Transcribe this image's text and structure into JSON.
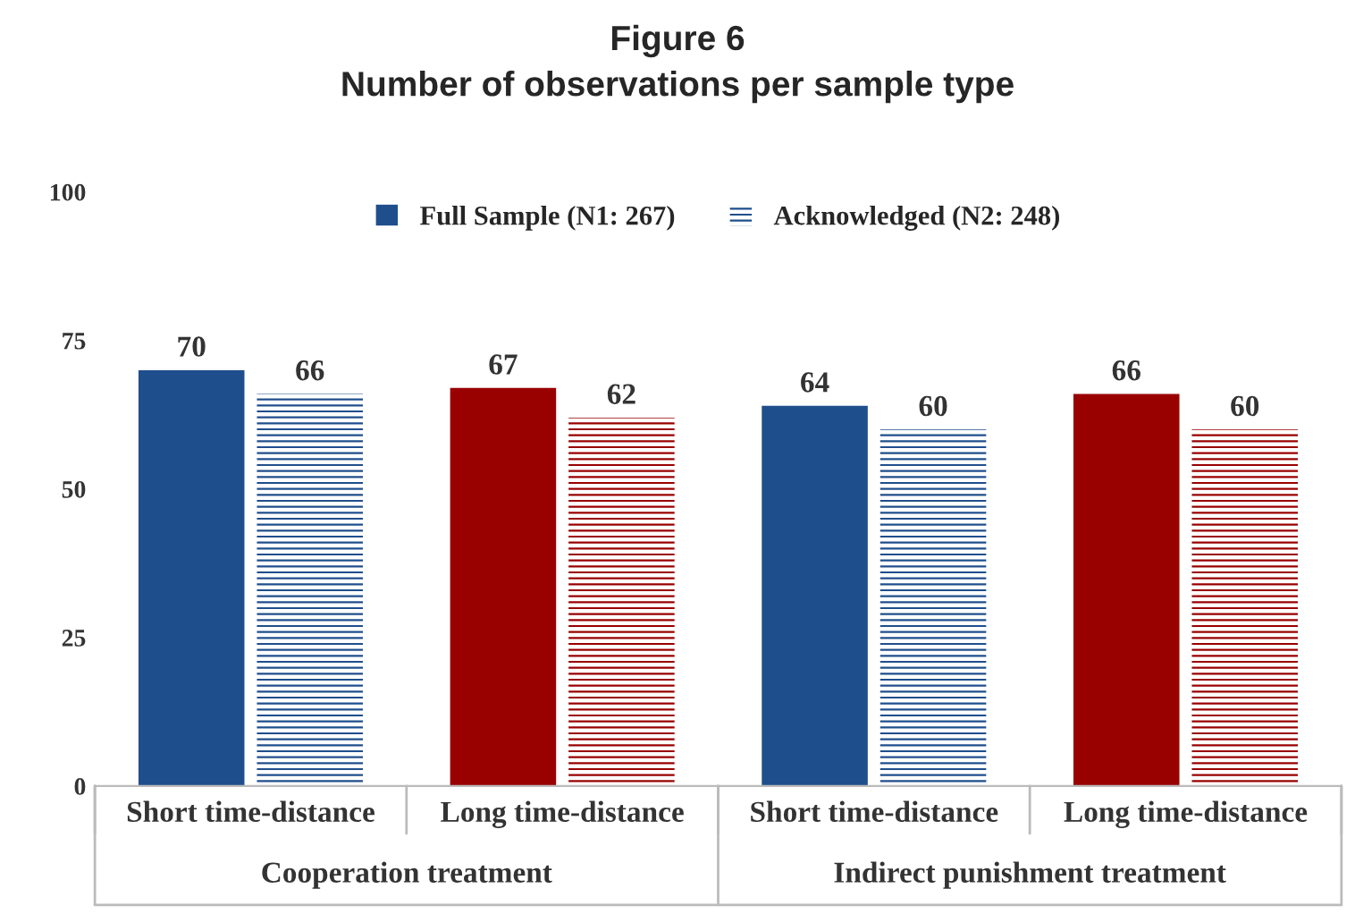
{
  "chart_data": {
    "type": "bar",
    "title": "Figure 6",
    "subtitle": "Number of observations per sample type",
    "categories": [
      "Short time-distance",
      "Long time-distance",
      "Short time-distance",
      "Long time-distance"
    ],
    "series": [
      {
        "name": "Full Sample (N1: 267)",
        "color": "#1f4e8c",
        "colors": [
          "#1f4e8c",
          "#990000",
          "#1f4e8c",
          "#990000"
        ],
        "values": [
          70,
          67,
          64,
          66
        ]
      },
      {
        "name": "Acknowledged (N2: 248)",
        "color": "#1f4e8c",
        "colors": [
          "#1f4e8c",
          "#990000",
          "#1f4e8c",
          "#990000"
        ],
        "values": [
          66,
          62,
          60,
          60
        ]
      }
    ],
    "annotations": [
      "Cooperation treatment",
      "Indirect punishment treatment"
    ],
    "ylim": [
      0,
      100
    ],
    "yticks": [
      0,
      25,
      50,
      75,
      100
    ],
    "grid": false,
    "legend": "top",
    "data_labels": true
  }
}
